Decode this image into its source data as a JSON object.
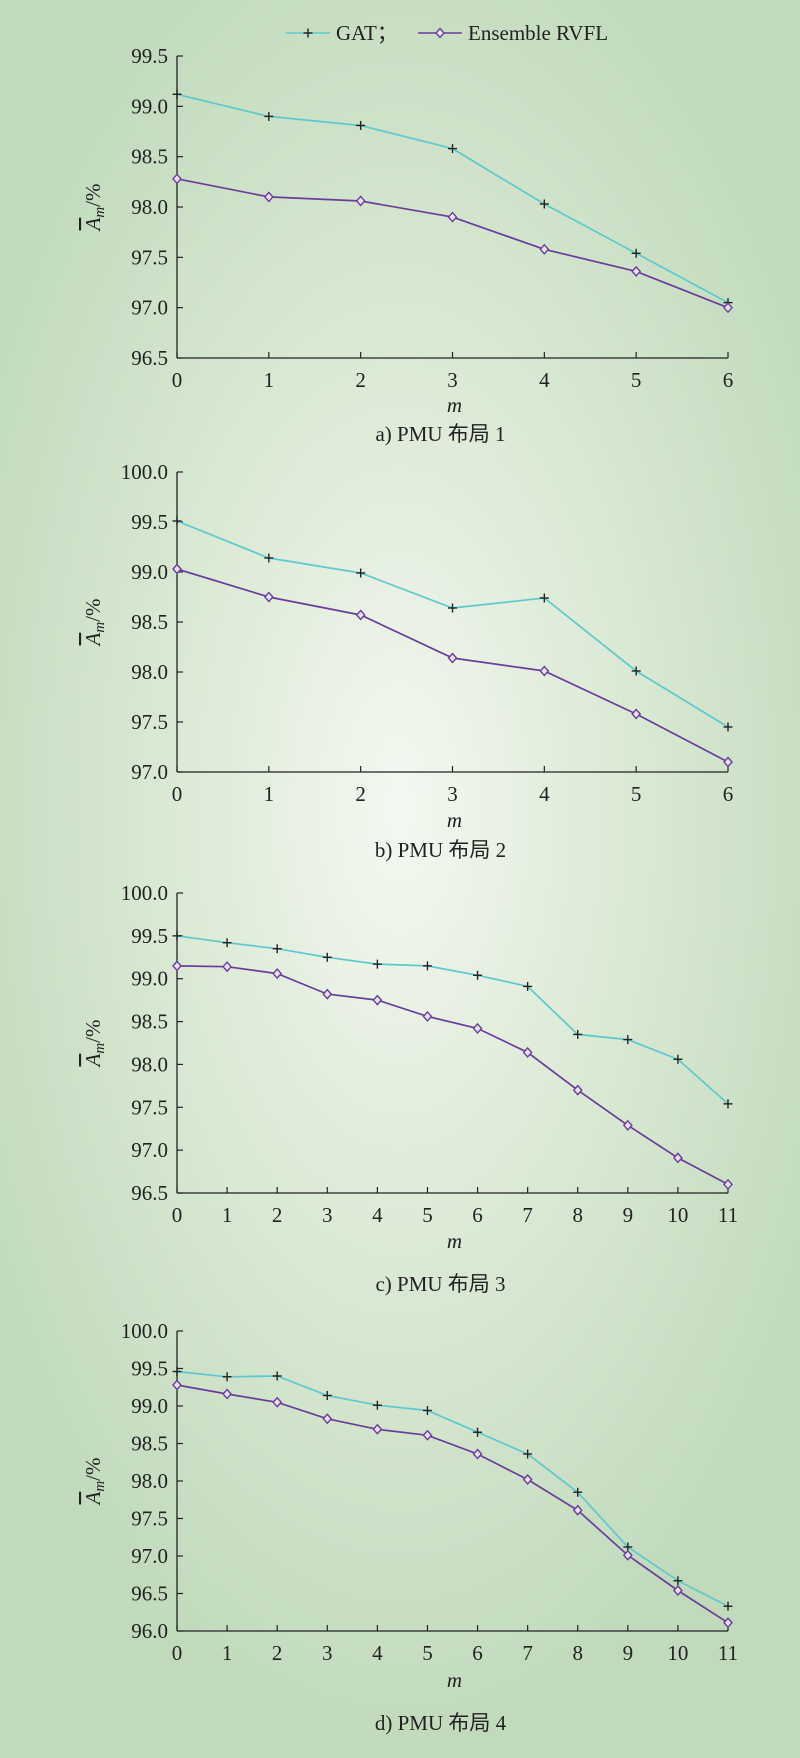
{
  "legend": {
    "entries": [
      {
        "label": "GAT；",
        "color": "#5ec8cf",
        "marker": "plus"
      },
      {
        "label": "Ensemble RVFL",
        "color": "#6a3d9a",
        "marker": "diamond"
      }
    ]
  },
  "chart_data": [
    {
      "type": "line",
      "caption": "a) PMU 布局 1",
      "xlabel": "m",
      "ylabel_main": "A",
      "ylabel_sub": "m",
      "ylabel_suffix": "/%",
      "x": [
        0,
        1,
        2,
        3,
        4,
        5,
        6
      ],
      "ylim": [
        96.5,
        99.5
      ],
      "yticks": [
        "96.5",
        "97.0",
        "97.5",
        "98.0",
        "98.5",
        "99.0",
        "99.5"
      ],
      "series": [
        {
          "name": "GAT",
          "values": [
            99.12,
            98.9,
            98.81,
            98.58,
            98.03,
            97.54,
            97.05
          ]
        },
        {
          "name": "Ensemble RVFL",
          "values": [
            98.28,
            98.1,
            98.06,
            97.9,
            97.58,
            97.36,
            97.0
          ]
        }
      ]
    },
    {
      "type": "line",
      "caption": "b) PMU 布局 2",
      "xlabel": "m",
      "ylabel_main": "A",
      "ylabel_sub": "m",
      "ylabel_suffix": "/%",
      "x": [
        0,
        1,
        2,
        3,
        4,
        5,
        6
      ],
      "ylim": [
        97.0,
        100.0
      ],
      "yticks": [
        "97.0",
        "97.5",
        "98.0",
        "98.5",
        "99.0",
        "99.5",
        "100.0"
      ],
      "series": [
        {
          "name": "GAT",
          "values": [
            99.51,
            99.14,
            98.99,
            98.64,
            98.74,
            98.01,
            97.45
          ]
        },
        {
          "name": "Ensemble RVFL",
          "values": [
            99.03,
            98.75,
            98.57,
            98.14,
            98.01,
            97.58,
            97.1
          ]
        }
      ]
    },
    {
      "type": "line",
      "caption": "c) PMU 布局 3",
      "xlabel": "m",
      "ylabel_main": "A",
      "ylabel_sub": "m",
      "ylabel_suffix": "/%",
      "x": [
        0,
        1,
        2,
        3,
        4,
        5,
        6,
        7,
        8,
        9,
        10,
        11
      ],
      "ylim": [
        96.5,
        100.0
      ],
      "yticks": [
        "96.5",
        "97.0",
        "97.5",
        "98.0",
        "98.5",
        "99.0",
        "99.5",
        "100.0"
      ],
      "series": [
        {
          "name": "GAT",
          "values": [
            99.5,
            99.42,
            99.35,
            99.25,
            99.17,
            99.15,
            99.04,
            98.91,
            98.35,
            98.29,
            98.06,
            97.54
          ]
        },
        {
          "name": "Ensemble RVFL",
          "values": [
            99.15,
            99.14,
            99.06,
            98.82,
            98.75,
            98.56,
            98.42,
            98.14,
            97.7,
            97.29,
            96.91,
            96.6
          ]
        }
      ]
    },
    {
      "type": "line",
      "caption": "d) PMU 布局 4",
      "xlabel": "m",
      "ylabel_main": "A",
      "ylabel_sub": "m",
      "ylabel_suffix": "/%",
      "x": [
        0,
        1,
        2,
        3,
        4,
        5,
        6,
        7,
        8,
        9,
        10,
        11
      ],
      "ylim": [
        96.0,
        100.0
      ],
      "yticks": [
        "96.0",
        "96.5",
        "97.0",
        "97.5",
        "98.0",
        "98.5",
        "99.0",
        "99.5",
        "100.0"
      ],
      "series": [
        {
          "name": "GAT",
          "values": [
            99.46,
            99.39,
            99.4,
            99.14,
            99.01,
            98.94,
            98.65,
            98.36,
            97.85,
            97.12,
            96.67,
            96.33
          ]
        },
        {
          "name": "Ensemble RVFL",
          "values": [
            99.28,
            99.16,
            99.05,
            98.83,
            98.69,
            98.61,
            98.36,
            98.02,
            97.61,
            97.01,
            96.54,
            96.11
          ]
        }
      ]
    }
  ]
}
